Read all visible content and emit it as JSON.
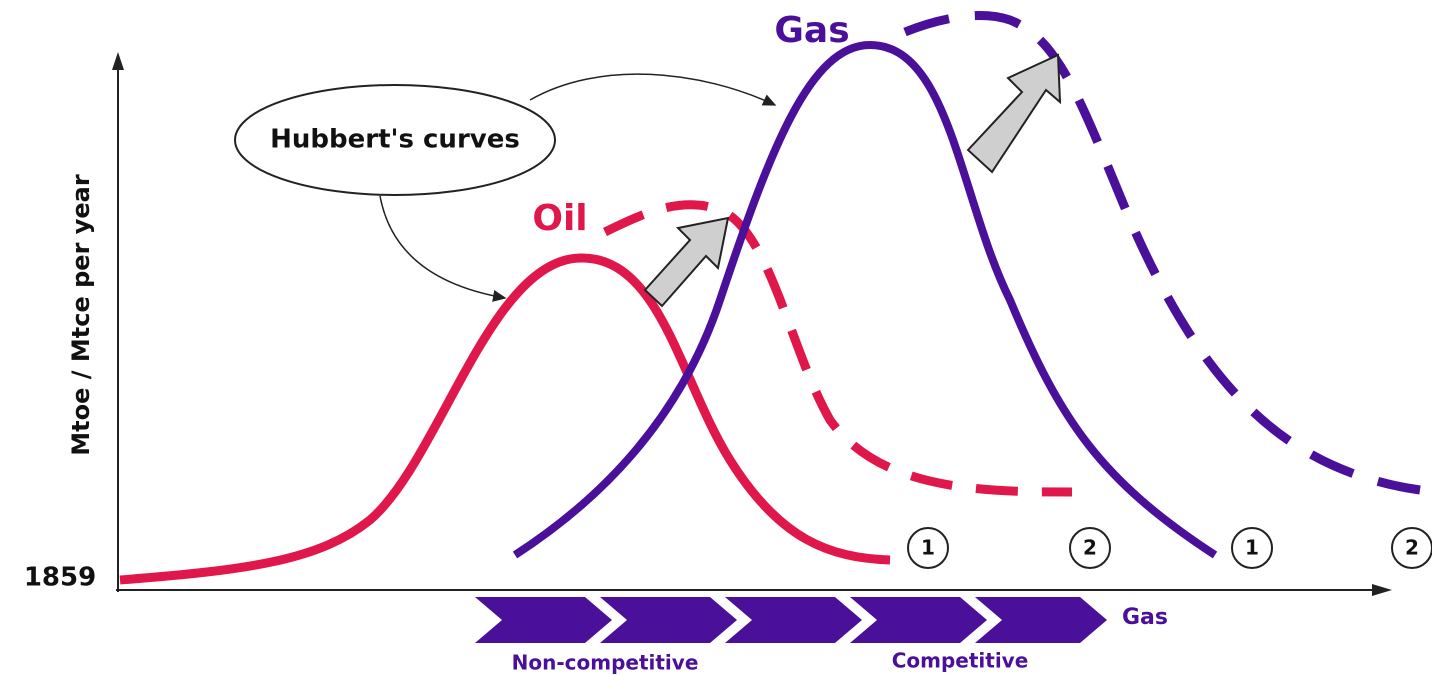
{
  "labels": {
    "gas_curve": "Gas",
    "oil_curve": "Oil",
    "hubbert": "Hubbert's curves",
    "y_axis": "Mtoe / Mtce per year",
    "origin": "1859"
  },
  "markers": [
    "1",
    "2",
    "1",
    "2"
  ],
  "timeline": {
    "end_label": "Gas",
    "phases": [
      "Non-competitive",
      "Competitive"
    ]
  }
}
